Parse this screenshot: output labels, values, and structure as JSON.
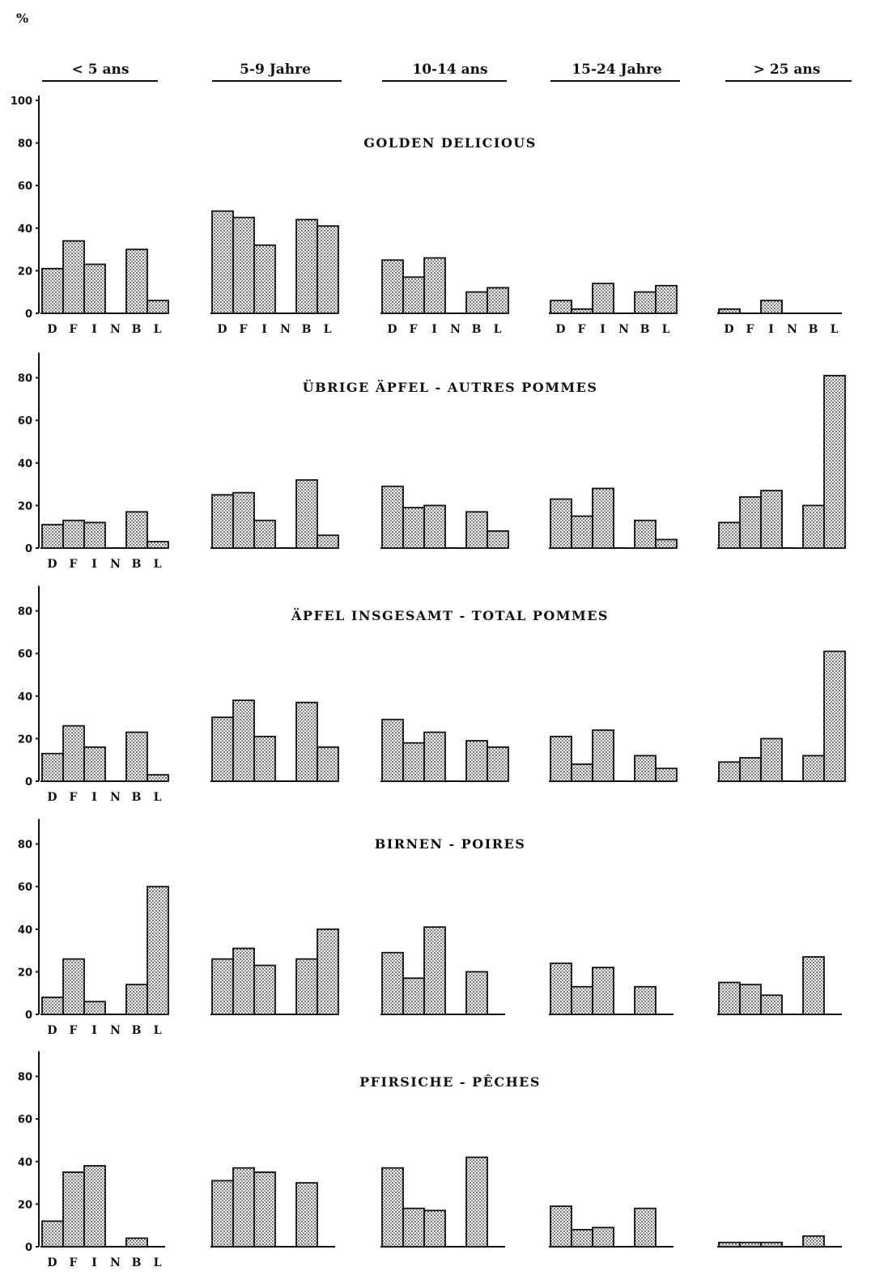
{
  "y_unit": "%",
  "age_groups": [
    "< 5 ans",
    "5-9 Jahre",
    "10-14 ans",
    "15-24 Jahre",
    "> 25 ans"
  ],
  "categories": [
    "D",
    "F",
    "I",
    "N",
    "B",
    "L"
  ],
  "y_ticks": [
    "0",
    "20",
    "40",
    "60",
    "80",
    "100"
  ],
  "chart_data": [
    {
      "type": "bar",
      "title": "GOLDEN DELICIOUS",
      "categories": [
        "D",
        "F",
        "I",
        "N",
        "B",
        "L"
      ],
      "ylim": [
        0,
        100
      ],
      "series": [
        {
          "name": "< 5 ans",
          "values": [
            21,
            34,
            23,
            0,
            30,
            6
          ]
        },
        {
          "name": "5-9 Jahre",
          "values": [
            48,
            45,
            32,
            0,
            44,
            41
          ]
        },
        {
          "name": "10-14 ans",
          "values": [
            25,
            17,
            26,
            0,
            10,
            12
          ]
        },
        {
          "name": "15-24 Jahre",
          "values": [
            6,
            2,
            14,
            0,
            10,
            13
          ]
        },
        {
          "name": "> 25 ans",
          "values": [
            2,
            0,
            6,
            0,
            0,
            0
          ]
        }
      ]
    },
    {
      "type": "bar",
      "title": "ÜBRIGE ÄPFEL - AUTRES POMMES",
      "categories": [
        "D",
        "F",
        "I",
        "N",
        "B",
        "L"
      ],
      "ylim": [
        0,
        100
      ],
      "series": [
        {
          "name": "< 5 ans",
          "values": [
            11,
            13,
            12,
            0,
            17,
            3
          ]
        },
        {
          "name": "5-9 Jahre",
          "values": [
            25,
            26,
            13,
            0,
            32,
            6
          ]
        },
        {
          "name": "10-14 ans",
          "values": [
            29,
            19,
            20,
            0,
            17,
            8
          ]
        },
        {
          "name": "15-24 Jahre",
          "values": [
            23,
            15,
            28,
            0,
            13,
            4
          ]
        },
        {
          "name": "> 25 ans",
          "values": [
            12,
            24,
            27,
            0,
            20,
            81
          ]
        }
      ]
    },
    {
      "type": "bar",
      "title": "ÄPFEL INSGESAMT - TOTAL POMMES",
      "categories": [
        "D",
        "F",
        "I",
        "N",
        "B",
        "L"
      ],
      "ylim": [
        0,
        100
      ],
      "series": [
        {
          "name": "< 5 ans",
          "values": [
            13,
            26,
            16,
            0,
            23,
            3
          ]
        },
        {
          "name": "5-9 Jahre",
          "values": [
            30,
            38,
            21,
            0,
            37,
            16
          ]
        },
        {
          "name": "10-14 ans",
          "values": [
            29,
            18,
            23,
            0,
            19,
            16
          ]
        },
        {
          "name": "15-24 Jahre",
          "values": [
            21,
            8,
            24,
            0,
            12,
            6
          ]
        },
        {
          "name": "> 25 ans",
          "values": [
            9,
            11,
            20,
            0,
            12,
            61
          ]
        }
      ]
    },
    {
      "type": "bar",
      "title": "BIRNEN - POIRES",
      "categories": [
        "D",
        "F",
        "I",
        "N",
        "B",
        "L"
      ],
      "ylim": [
        0,
        100
      ],
      "series": [
        {
          "name": "< 5 ans",
          "values": [
            8,
            26,
            6,
            0,
            14,
            60
          ]
        },
        {
          "name": "5-9 Jahre",
          "values": [
            26,
            31,
            23,
            0,
            26,
            40
          ]
        },
        {
          "name": "10-14 ans",
          "values": [
            29,
            17,
            41,
            0,
            20,
            0
          ]
        },
        {
          "name": "15-24 Jahre",
          "values": [
            24,
            13,
            22,
            0,
            13,
            0
          ]
        },
        {
          "name": "> 25 ans",
          "values": [
            15,
            14,
            9,
            0,
            27,
            0
          ]
        }
      ]
    },
    {
      "type": "bar",
      "title": "PFIRSICHE - PÊCHES",
      "categories": [
        "D",
        "F",
        "I",
        "N",
        "B",
        "L"
      ],
      "ylim": [
        0,
        100
      ],
      "series": [
        {
          "name": "< 5 ans",
          "values": [
            12,
            35,
            38,
            0,
            4,
            0
          ]
        },
        {
          "name": "5-9 Jahre",
          "values": [
            31,
            37,
            35,
            0,
            30,
            0
          ]
        },
        {
          "name": "10-14 ans",
          "values": [
            37,
            18,
            17,
            0,
            42,
            0
          ]
        },
        {
          "name": "15-24 Jahre",
          "values": [
            19,
            8,
            9,
            0,
            18,
            0
          ]
        },
        {
          "name": "> 25 ans",
          "values": [
            2,
            2,
            2,
            0,
            5,
            0
          ]
        }
      ]
    }
  ]
}
